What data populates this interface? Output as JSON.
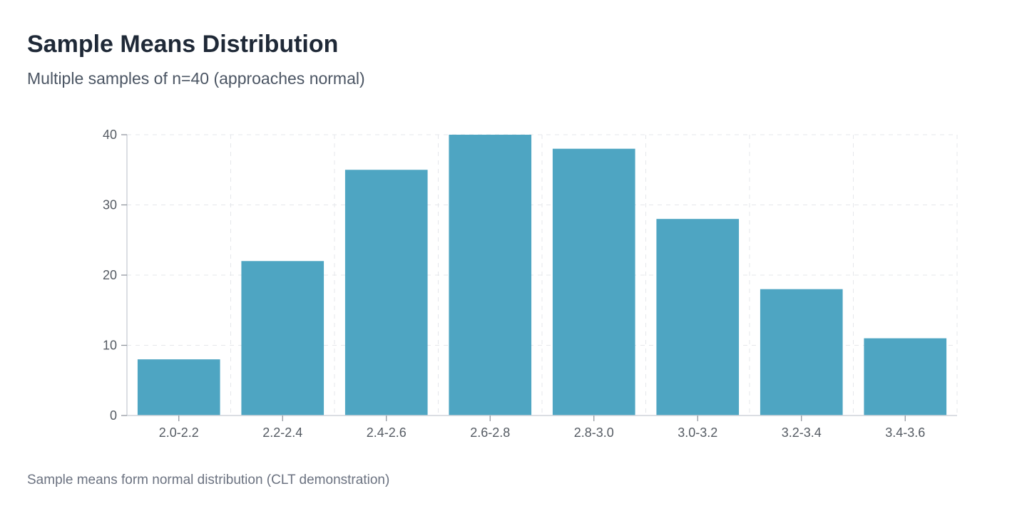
{
  "header": {
    "title": "Sample Means Distribution",
    "subtitle": "Multiple samples of n=40 (approaches normal)"
  },
  "footnote": "Sample means form normal distribution (CLT demonstration)",
  "colors": {
    "bar": "#4ea5c2",
    "grid": "#e5e7eb",
    "axis": "#cfd4da",
    "tick_text": "#555b63"
  },
  "chart_data": {
    "type": "bar",
    "categories": [
      "2.0-2.2",
      "2.2-2.4",
      "2.4-2.6",
      "2.6-2.8",
      "2.8-3.0",
      "3.0-3.2",
      "3.2-3.4",
      "3.4-3.6"
    ],
    "values": [
      8,
      22,
      35,
      40,
      38,
      28,
      18,
      11
    ],
    "title": "Sample Means Distribution",
    "subtitle": "Multiple samples of n=40 (approaches normal)",
    "xlabel": "",
    "ylabel": "",
    "ylim": [
      0,
      40
    ],
    "yticks": [
      0,
      10,
      20,
      30,
      40
    ],
    "grid": true
  }
}
